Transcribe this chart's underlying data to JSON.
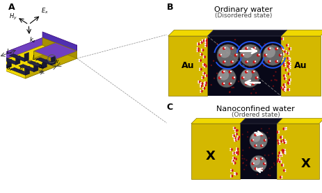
{
  "bg_color": "#ffffff",
  "gold_color": "#E8D000",
  "gold_dark": "#B8A000",
  "gold_side": "#C8B000",
  "purple_color": "#6030A0",
  "purple_dark": "#402080",
  "black_gap": "#1a1a2e",
  "red_dots": "#cc0000",
  "white_color": "#ffffff",
  "gray_sphere": "#888888",
  "blue_arrow": "#2266ff",
  "label_A": "A",
  "label_B": "B",
  "label_C": "C",
  "title_B": "Ordinary water",
  "subtitle_B": "(Disordered state)",
  "title_C": "Nanoconfined water",
  "subtitle_C": "(Ordered state)",
  "au_label": "Au"
}
